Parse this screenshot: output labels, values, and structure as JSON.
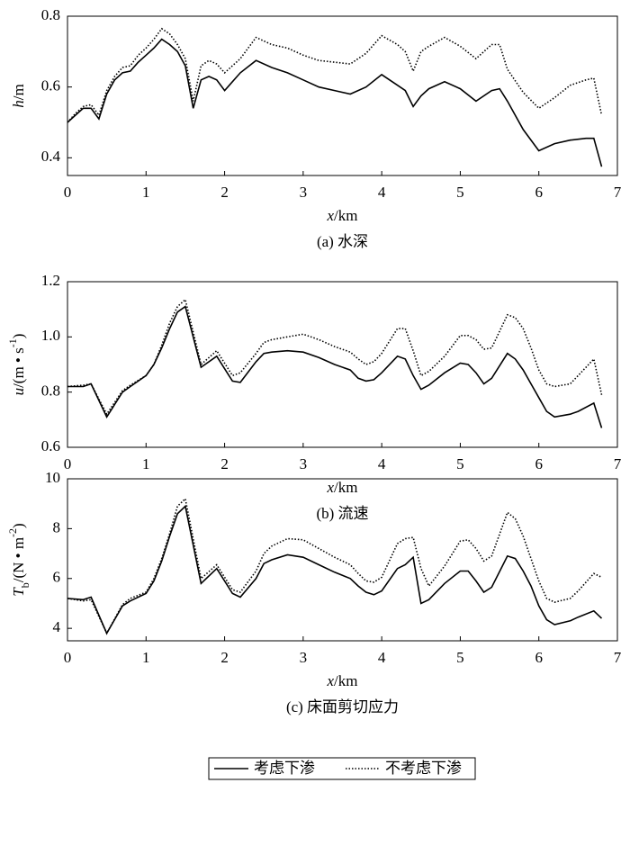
{
  "chart_data": [
    {
      "type": "line",
      "caption": "(a) 水深",
      "x_label": [
        {
          "text": "x",
          "style": "italic"
        },
        {
          "text": "/km",
          "style": "normal"
        }
      ],
      "y_label": [
        {
          "text": "h",
          "style": "italic"
        },
        {
          "text": "/m",
          "style": "normal"
        }
      ],
      "xlim": [
        0,
        7
      ],
      "xticks": [
        0,
        1,
        2,
        3,
        4,
        5,
        6,
        7
      ],
      "ylim": [
        0.35,
        0.8
      ],
      "yticks": [
        0.4,
        0.6,
        0.8
      ],
      "x": [
        0,
        0.1,
        0.2,
        0.3,
        0.4,
        0.5,
        0.6,
        0.7,
        0.8,
        0.9,
        1.0,
        1.1,
        1.2,
        1.3,
        1.4,
        1.5,
        1.6,
        1.7,
        1.8,
        1.9,
        2.0,
        2.2,
        2.4,
        2.6,
        2.8,
        3.0,
        3.2,
        3.4,
        3.6,
        3.8,
        4.0,
        4.2,
        4.3,
        4.4,
        4.5,
        4.6,
        4.8,
        5.0,
        5.2,
        5.4,
        5.5,
        5.6,
        5.8,
        6.0,
        6.2,
        6.4,
        6.6,
        6.7,
        6.8
      ],
      "series": [
        {
          "color": "#000000",
          "linestyle": "solid",
          "values": [
            0.5,
            0.52,
            0.54,
            0.54,
            0.51,
            0.58,
            0.62,
            0.64,
            0.645,
            0.67,
            0.69,
            0.71,
            0.735,
            0.72,
            0.7,
            0.66,
            0.54,
            0.62,
            0.63,
            0.62,
            0.59,
            0.64,
            0.675,
            0.655,
            0.64,
            0.62,
            0.6,
            0.59,
            0.58,
            0.6,
            0.635,
            0.605,
            0.59,
            0.545,
            0.575,
            0.595,
            0.615,
            0.595,
            0.56,
            0.59,
            0.595,
            0.56,
            0.48,
            0.42,
            0.44,
            0.45,
            0.455,
            0.455,
            0.375
          ]
        },
        {
          "color": "#000000",
          "linestyle": "dotted",
          "values": [
            0.5,
            0.525,
            0.545,
            0.55,
            0.52,
            0.59,
            0.63,
            0.655,
            0.66,
            0.69,
            0.71,
            0.735,
            0.765,
            0.75,
            0.72,
            0.68,
            0.56,
            0.66,
            0.675,
            0.665,
            0.64,
            0.68,
            0.74,
            0.72,
            0.71,
            0.69,
            0.675,
            0.67,
            0.665,
            0.695,
            0.745,
            0.72,
            0.7,
            0.645,
            0.7,
            0.715,
            0.74,
            0.715,
            0.68,
            0.72,
            0.72,
            0.65,
            0.585,
            0.54,
            0.57,
            0.605,
            0.62,
            0.625,
            0.52
          ]
        }
      ]
    },
    {
      "type": "line",
      "caption": "(b) 流速",
      "x_label": [
        {
          "text": "x",
          "style": "italic"
        },
        {
          "text": "/km",
          "style": "normal"
        }
      ],
      "y_label": [
        {
          "text": "u",
          "style": "italic"
        },
        {
          "text": "/(m • s",
          "style": "normal"
        },
        {
          "text": "-1",
          "style": "sup"
        },
        {
          "text": ")",
          "style": "normal"
        }
      ],
      "xlim": [
        0,
        7
      ],
      "xticks": [
        0,
        1,
        2,
        3,
        4,
        5,
        6,
        7
      ],
      "ylim": [
        0.6,
        1.2
      ],
      "yticks": [
        0.6,
        0.8,
        {
          "value": 1,
          "label": "1.0"
        },
        1.2
      ],
      "x": [
        0,
        0.2,
        0.3,
        0.5,
        0.7,
        0.8,
        1.0,
        1.1,
        1.2,
        1.3,
        1.4,
        1.5,
        1.7,
        1.9,
        2.1,
        2.2,
        2.4,
        2.5,
        2.6,
        2.8,
        3.0,
        3.2,
        3.4,
        3.6,
        3.7,
        3.8,
        3.9,
        4.0,
        4.2,
        4.3,
        4.4,
        4.5,
        4.6,
        4.8,
        5.0,
        5.1,
        5.2,
        5.3,
        5.4,
        5.6,
        5.7,
        5.8,
        5.9,
        6.0,
        6.1,
        6.2,
        6.4,
        6.5,
        6.7,
        6.8
      ],
      "series": [
        {
          "color": "#000000",
          "linestyle": "solid",
          "values": [
            0.82,
            0.82,
            0.83,
            0.71,
            0.8,
            0.82,
            0.86,
            0.9,
            0.96,
            1.03,
            1.09,
            1.11,
            0.89,
            0.93,
            0.84,
            0.835,
            0.91,
            0.94,
            0.945,
            0.95,
            0.945,
            0.925,
            0.9,
            0.88,
            0.85,
            0.84,
            0.845,
            0.87,
            0.93,
            0.92,
            0.86,
            0.81,
            0.825,
            0.87,
            0.905,
            0.9,
            0.87,
            0.83,
            0.85,
            0.94,
            0.92,
            0.88,
            0.83,
            0.78,
            0.73,
            0.71,
            0.72,
            0.73,
            0.76,
            0.67
          ]
        },
        {
          "color": "#000000",
          "linestyle": "dotted",
          "values": [
            0.82,
            0.825,
            0.83,
            0.72,
            0.805,
            0.825,
            0.86,
            0.9,
            0.97,
            1.05,
            1.11,
            1.135,
            0.9,
            0.95,
            0.86,
            0.87,
            0.94,
            0.98,
            0.99,
            1.0,
            1.01,
            0.99,
            0.965,
            0.945,
            0.92,
            0.9,
            0.91,
            0.94,
            1.03,
            1.03,
            0.95,
            0.86,
            0.875,
            0.93,
            1.005,
            1.005,
            0.99,
            0.955,
            0.96,
            1.08,
            1.07,
            1.03,
            0.96,
            0.88,
            0.83,
            0.82,
            0.83,
            0.86,
            0.92,
            0.79
          ]
        }
      ]
    },
    {
      "type": "line",
      "caption": "(c) 床面剪切应力",
      "x_label": [
        {
          "text": "x",
          "style": "italic"
        },
        {
          "text": "/km",
          "style": "normal"
        }
      ],
      "y_label": [
        {
          "text": "T",
          "style": "italic"
        },
        {
          "text": "b",
          "style": "sub"
        },
        {
          "text": "/(N • m",
          "style": "normal"
        },
        {
          "text": "-2",
          "style": "sup"
        },
        {
          "text": ")",
          "style": "normal"
        }
      ],
      "xlim": [
        0,
        7
      ],
      "xticks": [
        0,
        1,
        2,
        3,
        4,
        5,
        6,
        7
      ],
      "ylim": [
        3.5,
        10
      ],
      "yticks": [
        4,
        6,
        8,
        10
      ],
      "x": [
        0,
        0.2,
        0.3,
        0.5,
        0.7,
        0.8,
        1.0,
        1.1,
        1.2,
        1.3,
        1.4,
        1.5,
        1.7,
        1.9,
        2.1,
        2.2,
        2.4,
        2.5,
        2.6,
        2.8,
        3.0,
        3.2,
        3.4,
        3.6,
        3.7,
        3.8,
        3.9,
        4.0,
        4.2,
        4.3,
        4.4,
        4.5,
        4.6,
        4.8,
        5.0,
        5.1,
        5.2,
        5.3,
        5.4,
        5.6,
        5.7,
        5.8,
        5.9,
        6.0,
        6.1,
        6.2,
        6.4,
        6.5,
        6.7,
        6.8
      ],
      "series": [
        {
          "color": "#000000",
          "linestyle": "solid",
          "values": [
            5.2,
            5.15,
            5.25,
            3.8,
            4.9,
            5.1,
            5.4,
            5.9,
            6.7,
            7.7,
            8.6,
            8.9,
            5.8,
            6.4,
            5.4,
            5.25,
            6.0,
            6.6,
            6.75,
            6.95,
            6.85,
            6.55,
            6.25,
            6.0,
            5.7,
            5.45,
            5.35,
            5.5,
            6.4,
            6.55,
            6.85,
            5.0,
            5.15,
            5.8,
            6.3,
            6.3,
            5.9,
            5.45,
            5.65,
            6.9,
            6.8,
            6.3,
            5.7,
            4.9,
            4.35,
            4.15,
            4.3,
            4.45,
            4.7,
            4.4
          ]
        },
        {
          "color": "#000000",
          "linestyle": "dotted",
          "values": [
            5.2,
            5.1,
            5.15,
            3.8,
            4.95,
            5.2,
            5.45,
            6.0,
            6.8,
            7.8,
            8.9,
            9.2,
            6.0,
            6.55,
            5.55,
            5.45,
            6.3,
            7.0,
            7.3,
            7.6,
            7.55,
            7.2,
            6.85,
            6.55,
            6.2,
            5.9,
            5.85,
            6.05,
            7.4,
            7.6,
            7.65,
            6.4,
            5.7,
            6.5,
            7.5,
            7.55,
            7.2,
            6.7,
            6.9,
            8.65,
            8.4,
            7.7,
            6.8,
            5.9,
            5.2,
            5.05,
            5.2,
            5.5,
            6.2,
            6.05
          ]
        }
      ]
    }
  ],
  "legend": [
    {
      "name": "考虑下渗",
      "linestyle": "solid",
      "color": "#000000"
    },
    {
      "name": "不考虑下渗",
      "linestyle": "dotted",
      "color": "#000000"
    }
  ]
}
